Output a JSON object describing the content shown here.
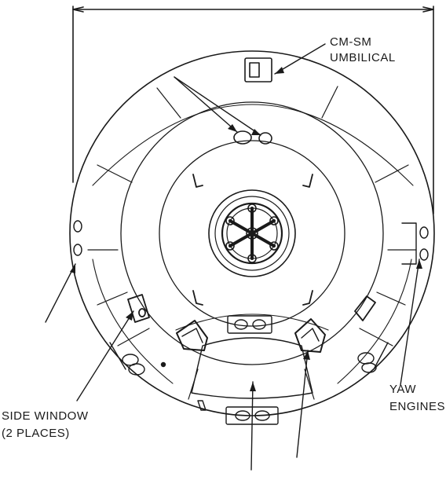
{
  "labels": {
    "cm_sm_umbilical_line1": "CM-SM",
    "cm_sm_umbilical_line2": "UMBILICAL",
    "yaw_engines_line1": "YAW",
    "yaw_engines_line2": "ENGINES",
    "side_window_line1": "SIDE WINDOW",
    "side_window_line2": "(2 PLACES)"
  },
  "colors": {
    "line": "#1a1a1a",
    "background": "#ffffff",
    "faded_text": "#d8d8d8"
  }
}
